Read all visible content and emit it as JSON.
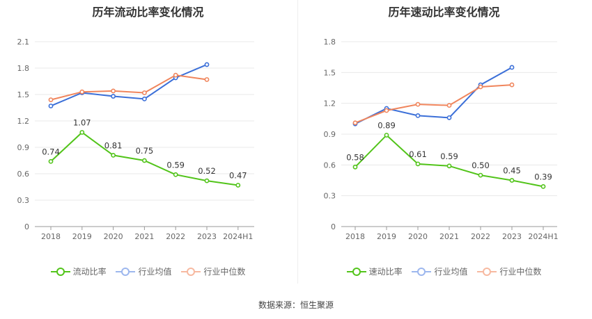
{
  "source": "数据来源：恒生聚源",
  "colors": {
    "main": "#52c41a",
    "avg": "#3b6fd8",
    "median": "#f0855c",
    "grid": "#e8e8e8",
    "axis": "#999999"
  },
  "chart_data": [
    {
      "type": "line",
      "title": "历年流动比率变化情况",
      "categories": [
        "2018",
        "2019",
        "2020",
        "2021",
        "2022",
        "2023",
        "2024H1"
      ],
      "ylim": [
        0,
        2.1
      ],
      "yticks": [
        "0",
        "0.3",
        "0.6",
        "0.9",
        "1.2",
        "1.5",
        "1.8",
        "2.1"
      ],
      "series": [
        {
          "name": "流动比率",
          "values": [
            0.74,
            1.07,
            0.81,
            0.75,
            0.59,
            0.52,
            0.47
          ],
          "labels": [
            "0.74",
            "1.07",
            "0.81",
            "0.75",
            "0.59",
            "0.52",
            "0.47"
          ]
        },
        {
          "name": "行业均值",
          "values": [
            1.37,
            1.52,
            1.48,
            1.45,
            1.69,
            1.84,
            null
          ]
        },
        {
          "name": "行业中位数",
          "values": [
            1.44,
            1.53,
            1.54,
            1.52,
            1.72,
            1.67,
            null
          ]
        }
      ],
      "grid": true,
      "legend": "bottom"
    },
    {
      "type": "line",
      "title": "历年速动比率变化情况",
      "categories": [
        "2018",
        "2019",
        "2020",
        "2021",
        "2022",
        "2023",
        "2024H1"
      ],
      "ylim": [
        0,
        1.8
      ],
      "yticks": [
        "0",
        "0.3",
        "0.6",
        "0.9",
        "1.2",
        "1.5",
        "1.8"
      ],
      "series": [
        {
          "name": "速动比率",
          "values": [
            0.58,
            0.89,
            0.61,
            0.59,
            0.5,
            0.45,
            0.39
          ],
          "labels": [
            "0.58",
            "0.89",
            "0.61",
            "0.59",
            "0.50",
            "0.45",
            "0.39"
          ]
        },
        {
          "name": "行业均值",
          "values": [
            1.0,
            1.15,
            1.08,
            1.06,
            1.38,
            1.55,
            null
          ]
        },
        {
          "name": "行业中位数",
          "values": [
            1.01,
            1.13,
            1.19,
            1.18,
            1.36,
            1.38,
            null
          ]
        }
      ],
      "grid": true,
      "legend": "bottom"
    }
  ]
}
